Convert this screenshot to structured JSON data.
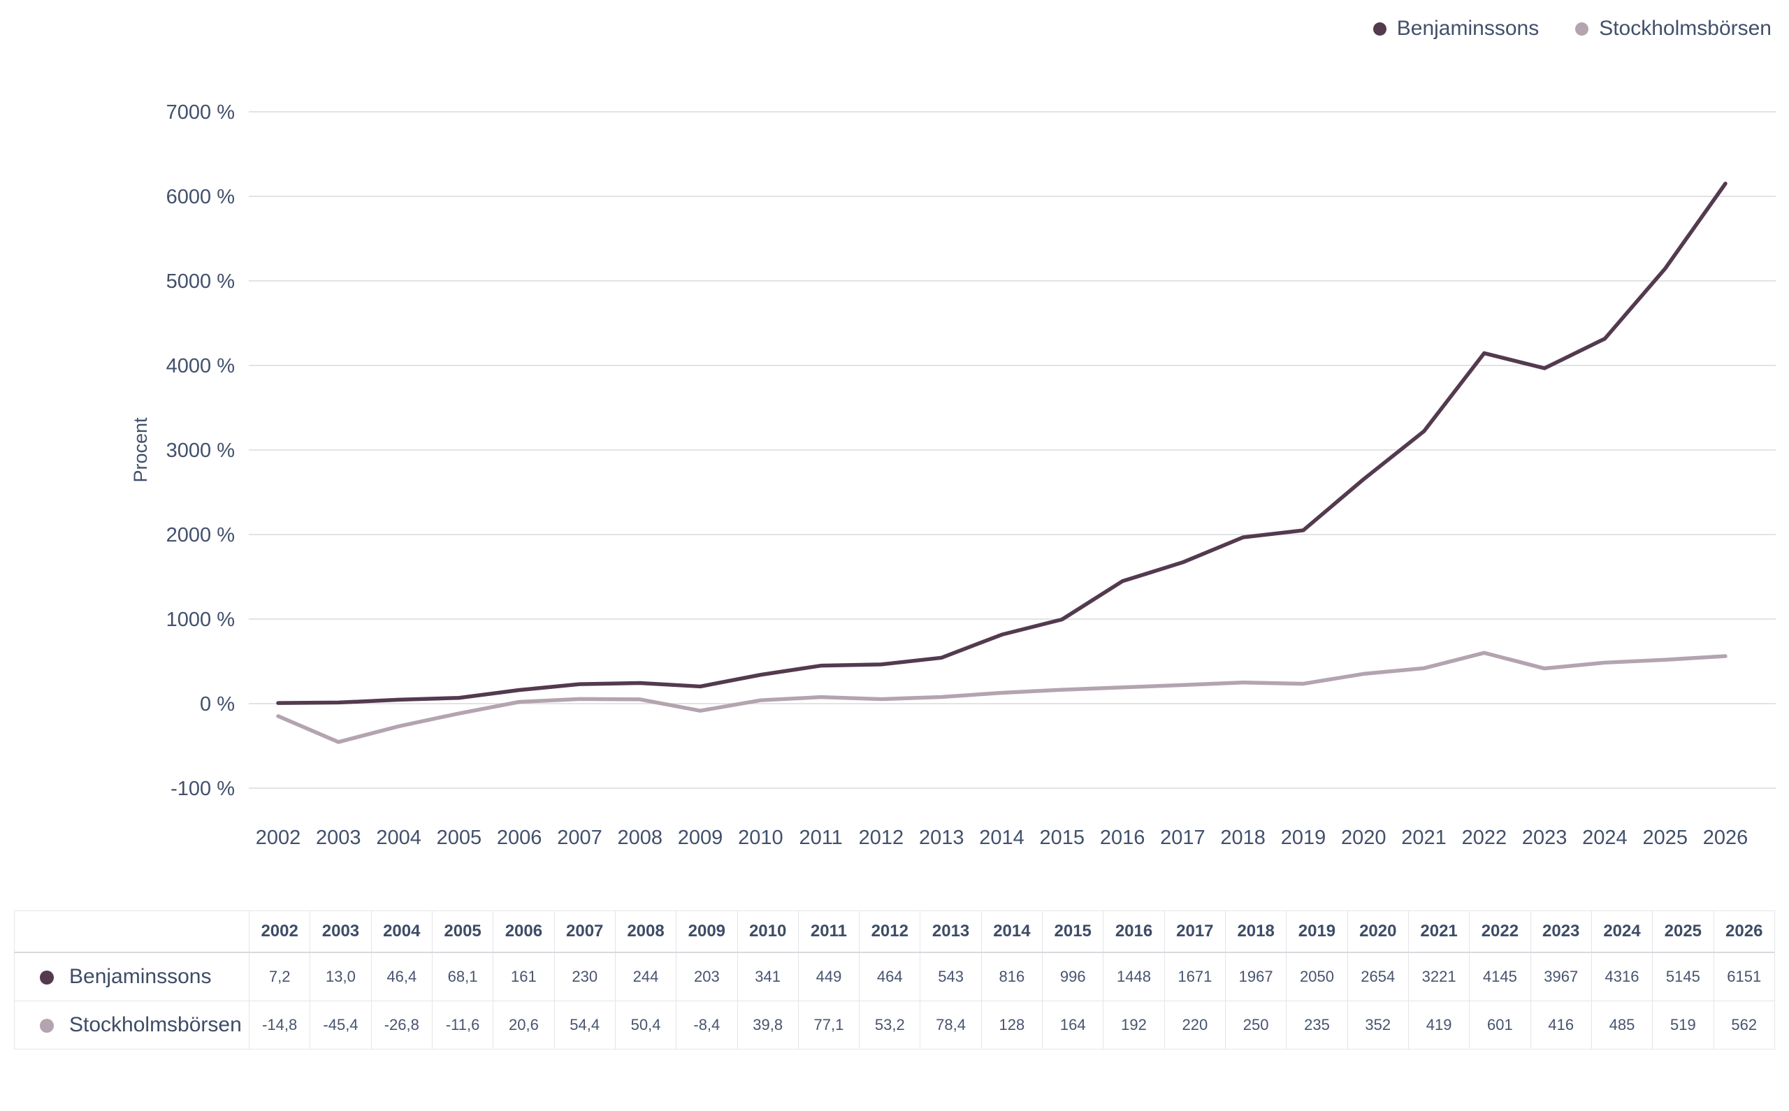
{
  "legend": {
    "items": [
      {
        "label": "Benjaminssons",
        "color": "#533a4e"
      },
      {
        "label": "Stockholmsbörsen",
        "color": "#b3a4af"
      }
    ]
  },
  "chart_data": {
    "type": "line",
    "title": "",
    "xlabel": "",
    "ylabel": "Procent",
    "grid": true,
    "legend_position": "top-right",
    "categories": [
      2002,
      2003,
      2004,
      2005,
      2006,
      2007,
      2008,
      2009,
      2010,
      2011,
      2012,
      2013,
      2014,
      2015,
      2016,
      2017,
      2018,
      2019,
      2020,
      2021,
      2022,
      2023,
      2024,
      2025,
      2026
    ],
    "series": [
      {
        "name": "Benjaminssons",
        "color": "#533a4e",
        "values": [
          7.2,
          13.0,
          46.4,
          68.1,
          161,
          230,
          244,
          203,
          341,
          449,
          464,
          543,
          816,
          996,
          1448,
          1671,
          1967,
          2050,
          2654,
          3221,
          4145,
          3967,
          4316,
          5145,
          6151
        ]
      },
      {
        "name": "Stockholmsbörsen",
        "color": "#b3a4af",
        "values": [
          -14.8,
          -45.4,
          -26.8,
          -11.6,
          20.6,
          54.4,
          50.4,
          -8.4,
          39.8,
          77.1,
          53.2,
          78.4,
          128,
          164,
          192,
          220,
          250,
          235,
          352,
          419,
          601,
          416,
          485,
          519,
          562
        ]
      }
    ],
    "yticks": [
      {
        "value": 7000,
        "label": "7000 %"
      },
      {
        "value": 6000,
        "label": "6000 %"
      },
      {
        "value": 5000,
        "label": "5000 %"
      },
      {
        "value": 4000,
        "label": "4000 %"
      },
      {
        "value": 3000,
        "label": "3000 %"
      },
      {
        "value": 2000,
        "label": "2000 %"
      },
      {
        "value": 1000,
        "label": "1000 %"
      },
      {
        "value": 0,
        "label": "0 %"
      },
      {
        "value": -100,
        "label": "-100 %"
      }
    ],
    "ylim": [
      -100,
      7000
    ]
  },
  "table": {
    "columns": [
      "2002",
      "2003",
      "2004",
      "2005",
      "2006",
      "2007",
      "2008",
      "2009",
      "2010",
      "2011",
      "2012",
      "2013",
      "2014",
      "2015",
      "2016",
      "2017",
      "2018",
      "2019",
      "2020",
      "2021",
      "2022",
      "2023",
      "2024",
      "2025",
      "2026"
    ],
    "rows": [
      {
        "label": "Benjaminssons",
        "color": "#533a4e",
        "values": [
          "7,2",
          "13,0",
          "46,4",
          "68,1",
          "161",
          "230",
          "244",
          "203",
          "341",
          "449",
          "464",
          "543",
          "816",
          "996",
          "1448",
          "1671",
          "1967",
          "2050",
          "2654",
          "3221",
          "4145",
          "3967",
          "4316",
          "5145",
          "6151"
        ]
      },
      {
        "label": "Stockholmsbörsen",
        "color": "#b3a4af",
        "values": [
          "-14,8",
          "-45,4",
          "-26,8",
          "-11,6",
          "20,6",
          "54,4",
          "50,4",
          "-8,4",
          "39,8",
          "77,1",
          "53,2",
          "78,4",
          "128",
          "164",
          "192",
          "220",
          "250",
          "235",
          "352",
          "419",
          "601",
          "416",
          "485",
          "519",
          "562"
        ]
      }
    ]
  },
  "colors": {
    "grid_line": "#e3e3e6",
    "axis_text": "#42506b",
    "background": "#ffffff"
  }
}
